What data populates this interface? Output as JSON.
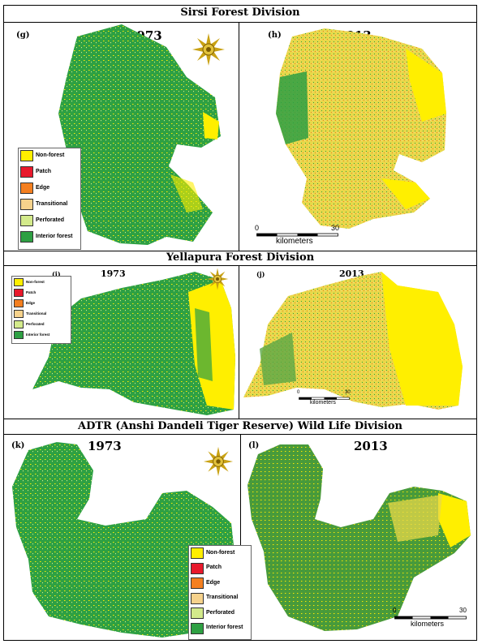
{
  "sections": [
    {
      "title": "Sirsi Forest Division",
      "left": {
        "label": "(g)",
        "year": "1973"
      },
      "right": {
        "label": "(h)",
        "year": "2013"
      }
    },
    {
      "title": "Yellapura Forest Division",
      "left": {
        "label": "(i)",
        "year": "1973"
      },
      "right": {
        "label": "(j)",
        "year": "2013"
      }
    },
    {
      "title": "ADTR (Anshi Dandeli Tiger Reserve) Wild Life Division",
      "left": {
        "label": "(k)",
        "year": "1973"
      },
      "right": {
        "label": "(l)",
        "year": "2013"
      }
    }
  ],
  "legend": [
    {
      "label": "Non-forest",
      "color": "#ffef00"
    },
    {
      "label": "Patch",
      "color": "#e8192c"
    },
    {
      "label": "Edge",
      "color": "#f47f20"
    },
    {
      "label": "Transitional",
      "color": "#f6d28c"
    },
    {
      "label": "Perforated",
      "color": "#d3ea8b"
    },
    {
      "label": "Interior forest",
      "color": "#2ea043"
    }
  ],
  "scalebar": {
    "start": "0",
    "end": "30",
    "unit": "kilometers"
  },
  "north_arrow": {
    "icon": "sun-compass-icon"
  }
}
